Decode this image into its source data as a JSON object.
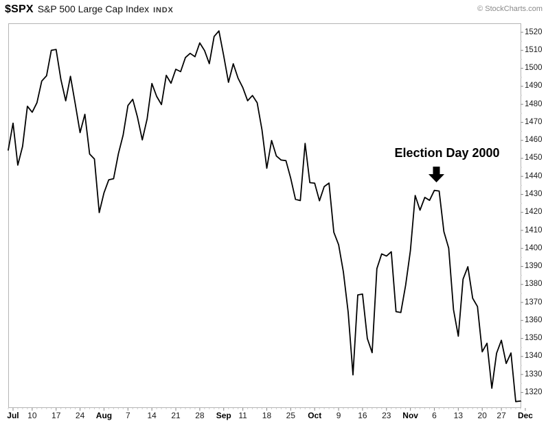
{
  "header": {
    "symbol": "$SPX",
    "name": "S&P 500 Large Cap Index",
    "exchange": "INDX",
    "credit": "© StockCharts.com"
  },
  "annotation": {
    "label": "Election Day 2000"
  },
  "chart_data": {
    "type": "line",
    "title": "$SPX S&P 500 Large Cap Index (INDX)",
    "series_name": "$SPX close",
    "line_color": "#000000",
    "grid": false,
    "legend_position": "none",
    "ylim": [
      1311,
      1525
    ],
    "y_ticks": [
      1320,
      1330,
      1340,
      1350,
      1360,
      1370,
      1380,
      1390,
      1400,
      1410,
      1420,
      1430,
      1440,
      1450,
      1460,
      1470,
      1480,
      1490,
      1500,
      1510,
      1520
    ],
    "x_ticks": [
      {
        "label": "Jul",
        "index": 1,
        "bold": true
      },
      {
        "label": "10",
        "index": 5,
        "bold": false
      },
      {
        "label": "17",
        "index": 10,
        "bold": false
      },
      {
        "label": "24",
        "index": 15,
        "bold": false
      },
      {
        "label": "Aug",
        "index": 20,
        "bold": true
      },
      {
        "label": "7",
        "index": 25,
        "bold": false
      },
      {
        "label": "14",
        "index": 30,
        "bold": false
      },
      {
        "label": "21",
        "index": 35,
        "bold": false
      },
      {
        "label": "28",
        "index": 40,
        "bold": false
      },
      {
        "label": "Sep",
        "index": 45,
        "bold": true
      },
      {
        "label": "11",
        "index": 49,
        "bold": false
      },
      {
        "label": "18",
        "index": 54,
        "bold": false
      },
      {
        "label": "25",
        "index": 59,
        "bold": false
      },
      {
        "label": "Oct",
        "index": 64,
        "bold": true
      },
      {
        "label": "9",
        "index": 69,
        "bold": false
      },
      {
        "label": "16",
        "index": 74,
        "bold": false
      },
      {
        "label": "23",
        "index": 79,
        "bold": false
      },
      {
        "label": "Nov",
        "index": 84,
        "bold": true
      },
      {
        "label": "6",
        "index": 89,
        "bold": false
      },
      {
        "label": "13",
        "index": 94,
        "bold": false
      },
      {
        "label": "20",
        "index": 99,
        "bold": false
      },
      {
        "label": "27",
        "index": 103,
        "bold": false
      },
      {
        "label": "Dec",
        "index": 108,
        "bold": true
      }
    ],
    "x": [
      "2000-06-30",
      "2000-07-03",
      "2000-07-05",
      "2000-07-06",
      "2000-07-07",
      "2000-07-10",
      "2000-07-11",
      "2000-07-12",
      "2000-07-13",
      "2000-07-14",
      "2000-07-17",
      "2000-07-18",
      "2000-07-19",
      "2000-07-20",
      "2000-07-21",
      "2000-07-24",
      "2000-07-25",
      "2000-07-26",
      "2000-07-27",
      "2000-07-28",
      "2000-07-31",
      "2000-08-01",
      "2000-08-02",
      "2000-08-03",
      "2000-08-04",
      "2000-08-07",
      "2000-08-08",
      "2000-08-09",
      "2000-08-10",
      "2000-08-11",
      "2000-08-14",
      "2000-08-15",
      "2000-08-16",
      "2000-08-17",
      "2000-08-18",
      "2000-08-21",
      "2000-08-22",
      "2000-08-23",
      "2000-08-24",
      "2000-08-25",
      "2000-08-28",
      "2000-08-29",
      "2000-08-30",
      "2000-08-31",
      "2000-09-01",
      "2000-09-05",
      "2000-09-06",
      "2000-09-07",
      "2000-09-08",
      "2000-09-11",
      "2000-09-12",
      "2000-09-13",
      "2000-09-14",
      "2000-09-15",
      "2000-09-18",
      "2000-09-19",
      "2000-09-20",
      "2000-09-21",
      "2000-09-22",
      "2000-09-25",
      "2000-09-26",
      "2000-09-27",
      "2000-09-28",
      "2000-09-29",
      "2000-10-02",
      "2000-10-03",
      "2000-10-04",
      "2000-10-05",
      "2000-10-06",
      "2000-10-09",
      "2000-10-10",
      "2000-10-11",
      "2000-10-12",
      "2000-10-13",
      "2000-10-16",
      "2000-10-17",
      "2000-10-18",
      "2000-10-19",
      "2000-10-20",
      "2000-10-23",
      "2000-10-24",
      "2000-10-25",
      "2000-10-26",
      "2000-10-27",
      "2000-10-30",
      "2000-10-31",
      "2000-11-01",
      "2000-11-02",
      "2000-11-03",
      "2000-11-06",
      "2000-11-07",
      "2000-11-08",
      "2000-11-09",
      "2000-11-10",
      "2000-11-13",
      "2000-11-14",
      "2000-11-15",
      "2000-11-16",
      "2000-11-17",
      "2000-11-20",
      "2000-11-21",
      "2000-11-22",
      "2000-11-24",
      "2000-11-27",
      "2000-11-28",
      "2000-11-29",
      "2000-11-30",
      "2000-12-01"
    ],
    "values": [
      1454.6,
      1469.54,
      1446.23,
      1456.67,
      1478.9,
      1475.62,
      1480.88,
      1492.92,
      1495.84,
      1509.98,
      1510.49,
      1493.74,
      1481.96,
      1495.57,
      1480.19,
      1464.29,
      1474.47,
      1452.42,
      1449.62,
      1419.89,
      1430.83,
      1438.1,
      1438.7,
      1452.56,
      1462.93,
      1479.32,
      1482.8,
      1472.87,
      1460.25,
      1471.84,
      1491.56,
      1484.43,
      1479.85,
      1496.07,
      1491.72,
      1499.48,
      1498.13,
      1505.97,
      1508.31,
      1506.45,
      1514.09,
      1509.84,
      1502.59,
      1517.68,
      1520.77,
      1507.08,
      1492.25,
      1502.51,
      1494.5,
      1489.26,
      1481.99,
      1484.91,
      1480.87,
      1465.81,
      1444.51,
      1459.9,
      1451.34,
      1449.05,
      1448.72,
      1439.03,
      1427.21,
      1426.57,
      1458.29,
      1436.51,
      1436.23,
      1426.46,
      1434.32,
      1436.28,
      1408.99,
      1402.03,
      1387.02,
      1364.59,
      1329.78,
      1374.17,
      1374.62,
      1349.97,
      1342.13,
      1388.76,
      1396.93,
      1395.78,
      1398.13,
      1364.9,
      1364.44,
      1379.58,
      1398.66,
      1429.4,
      1421.22,
      1428.32,
      1426.69,
      1432.19,
      1431.87,
      1409.28,
      1400.14,
      1365.98,
      1351.26,
      1382.95,
      1389.81,
      1372.32,
      1367.72,
      1342.62,
      1347.35,
      1322.36,
      1341.77,
      1348.97,
      1336.09,
      1341.93,
      1314.95,
      1315.23
    ],
    "annotations": [
      {
        "text": "Election Day 2000",
        "points_at": "2000-11-06",
        "value_at_arrow": 1432.19
      }
    ]
  }
}
